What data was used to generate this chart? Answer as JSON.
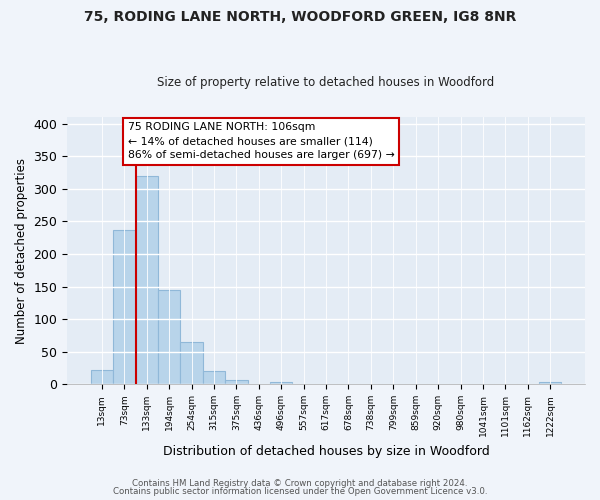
{
  "title1": "75, RODING LANE NORTH, WOODFORD GREEN, IG8 8NR",
  "title2": "Size of property relative to detached houses in Woodford",
  "xlabel": "Distribution of detached houses by size in Woodford",
  "ylabel": "Number of detached properties",
  "bar_labels": [
    "13sqm",
    "73sqm",
    "133sqm",
    "194sqm",
    "254sqm",
    "315sqm",
    "375sqm",
    "436sqm",
    "496sqm",
    "557sqm",
    "617sqm",
    "678sqm",
    "738sqm",
    "799sqm",
    "859sqm",
    "920sqm",
    "980sqm",
    "1041sqm",
    "1101sqm",
    "1162sqm",
    "1222sqm"
  ],
  "bar_values": [
    22,
    236,
    320,
    144,
    65,
    21,
    7,
    0,
    4,
    0,
    0,
    0,
    0,
    0,
    0,
    0,
    0,
    0,
    0,
    0,
    3
  ],
  "bar_color": "#b8d4ea",
  "bar_edge_color": "#90b8d8",
  "vline_x": 2.0,
  "vline_color": "#cc0000",
  "annotation_text": "75 RODING LANE NORTH: 106sqm\n← 14% of detached houses are smaller (114)\n86% of semi-detached houses are larger (697) →",
  "annotation_box_edgecolor": "#cc0000",
  "annotation_box_facecolor": "#ffffff",
  "ylim": [
    0,
    410
  ],
  "yticks": [
    0,
    50,
    100,
    150,
    200,
    250,
    300,
    350,
    400
  ],
  "footer1": "Contains HM Land Registry data © Crown copyright and database right 2024.",
  "footer2": "Contains public sector information licensed under the Open Government Licence v3.0.",
  "bg_color": "#f0f4fa",
  "plot_bg_color": "#e4ecf5"
}
